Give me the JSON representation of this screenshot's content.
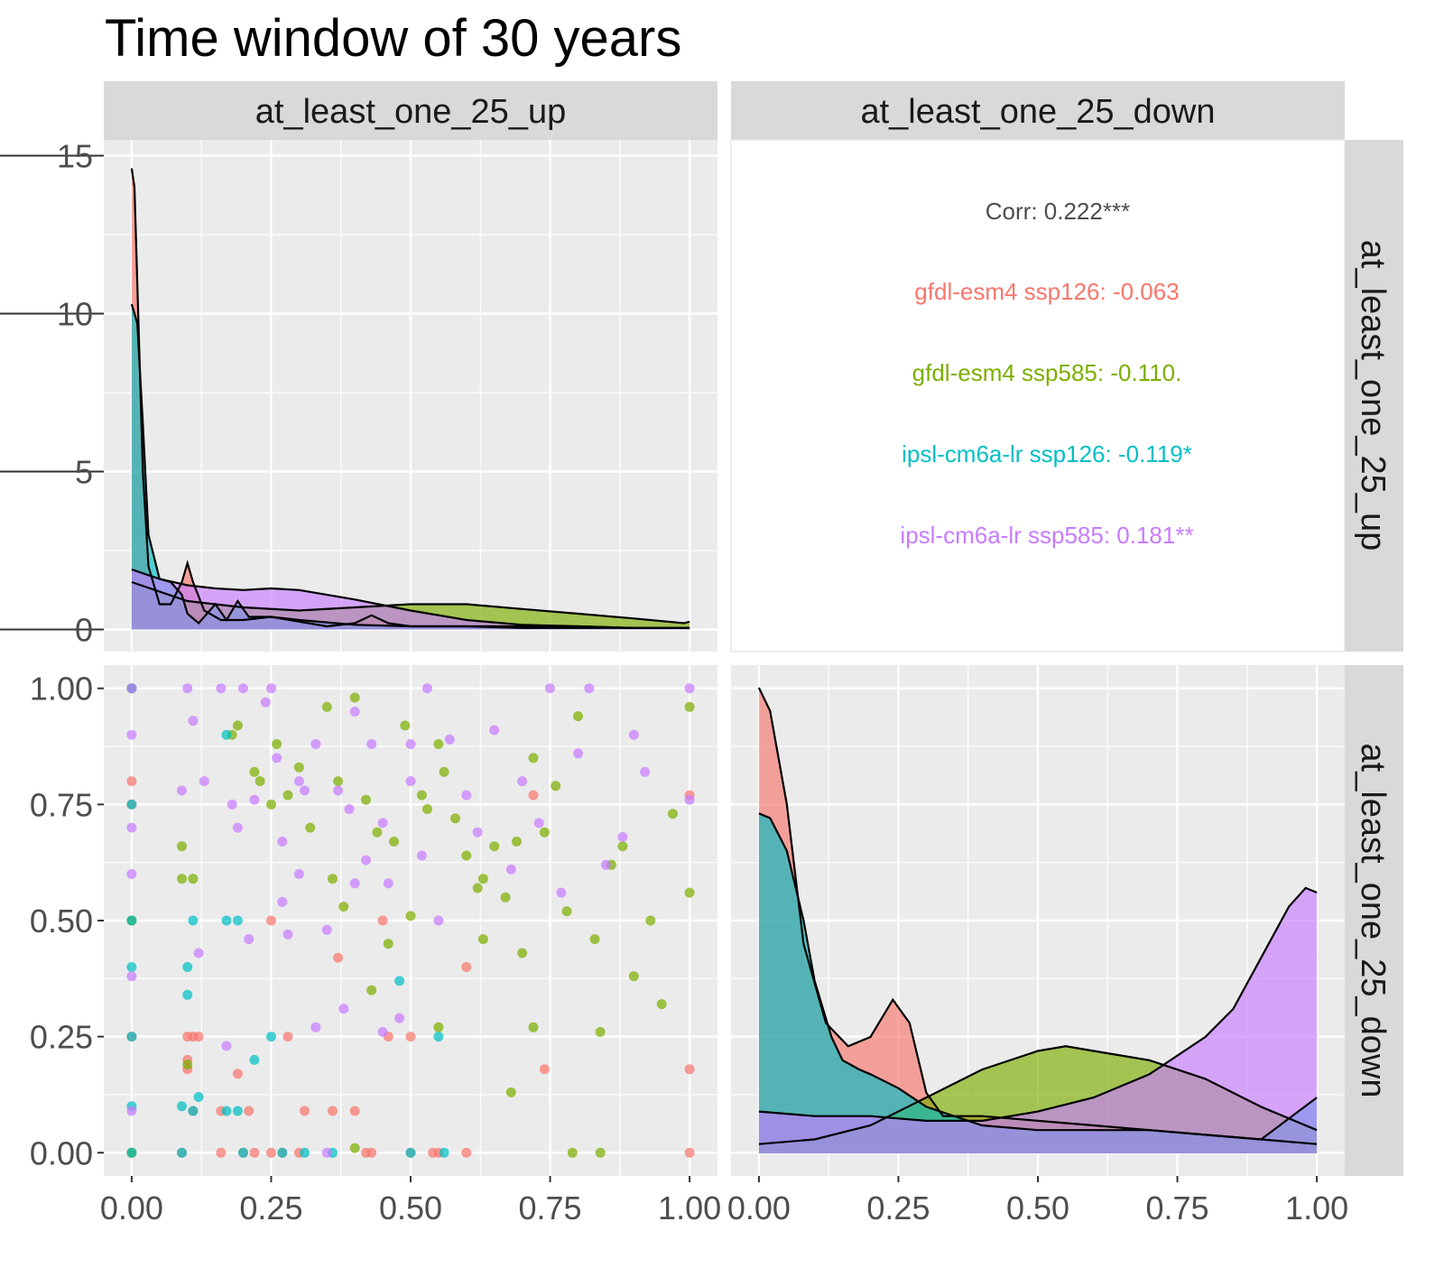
{
  "title": "Time window of 30 years",
  "colors": {
    "gfdl-esm4 ssp126": "#F8766D",
    "gfdl-esm4 ssp585": "#7CAE00",
    "ipsl-cm6a-lr ssp126": "#00BFC4",
    "ipsl-cm6a-lr ssp585": "#C77CFF"
  },
  "chart_data": {
    "type": "scatter",
    "title": "Time window of 30 years",
    "facets": {
      "columns": [
        "at_least_one_25_up",
        "at_least_one_25_down"
      ],
      "rows": [
        "at_least_one_25_up",
        "at_least_one_25_down"
      ]
    },
    "axes": {
      "x_ticks": [
        "0.00",
        "0.25",
        "0.50",
        "0.75",
        "1.00"
      ],
      "x_range": [
        -0.05,
        1.05
      ],
      "y_density_ticks": [
        "0",
        "5",
        "10",
        "15"
      ],
      "y_density_range": [
        -0.7,
        15.5
      ],
      "y_scatter_ticks": [
        "0.00",
        "0.25",
        "0.50",
        "0.75",
        "1.00"
      ],
      "y_scatter_range": [
        -0.05,
        1.05
      ],
      "grid": true
    },
    "correlations": {
      "overall": "Corr: 0.222***",
      "groups": [
        {
          "series": "gfdl-esm4 ssp126",
          "label": "gfdl-esm4 ssp126: -0.063"
        },
        {
          "series": "gfdl-esm4 ssp585",
          "label": "gfdl-esm4 ssp585: -0.110."
        },
        {
          "series": "ipsl-cm6a-lr ssp126",
          "label": "ipsl-cm6a-lr ssp126: -0.119*"
        },
        {
          "series": "ipsl-cm6a-lr ssp585",
          "label": "ipsl-cm6a-lr ssp585: 0.181**"
        }
      ]
    },
    "density_up": [
      {
        "series": "gfdl-esm4 ssp126",
        "x": [
          0,
          0.005,
          0.01,
          0.02,
          0.03,
          0.05,
          0.07,
          0.09,
          0.1,
          0.11,
          0.13,
          0.16,
          0.2,
          0.25,
          0.3,
          0.35,
          0.4,
          0.43,
          0.46,
          0.5,
          0.6,
          0.7,
          0.8,
          0.9,
          1.0
        ],
        "y": [
          14.6,
          14.0,
          11.0,
          5.0,
          2.0,
          0.8,
          0.8,
          1.5,
          2.1,
          1.5,
          0.6,
          0.3,
          0.3,
          0.4,
          0.25,
          0.1,
          0.2,
          0.45,
          0.2,
          0.1,
          0.1,
          0.1,
          0.1,
          0.05,
          0.05
        ]
      },
      {
        "series": "gfdl-esm4 ssp585",
        "x": [
          0,
          0.1,
          0.2,
          0.3,
          0.4,
          0.5,
          0.6,
          0.7,
          0.8,
          0.9,
          0.99,
          1.0
        ],
        "y": [
          1.5,
          0.9,
          0.7,
          0.6,
          0.7,
          0.8,
          0.8,
          0.65,
          0.5,
          0.35,
          0.2,
          0.25
        ]
      },
      {
        "series": "ipsl-cm6a-lr ssp126",
        "x": [
          0,
          0.01,
          0.02,
          0.03,
          0.05,
          0.07,
          0.09,
          0.1,
          0.12,
          0.15,
          0.17,
          0.19,
          0.21,
          0.25,
          0.3,
          0.4,
          0.5,
          0.6,
          0.7,
          0.8,
          0.9,
          1.0
        ],
        "y": [
          10.3,
          9.7,
          6.5,
          3.0,
          1.6,
          1.5,
          1.1,
          0.5,
          0.2,
          0.8,
          0.3,
          0.9,
          0.4,
          0.4,
          0.3,
          0.15,
          0.1,
          0.1,
          0.05,
          0.05,
          0.05,
          0.05
        ]
      },
      {
        "series": "ipsl-cm6a-lr ssp585",
        "x": [
          0,
          0.05,
          0.1,
          0.15,
          0.2,
          0.25,
          0.3,
          0.4,
          0.5,
          0.6,
          0.7,
          0.8,
          0.9,
          1.0
        ],
        "y": [
          1.9,
          1.6,
          1.4,
          1.3,
          1.25,
          1.3,
          1.25,
          0.95,
          0.6,
          0.3,
          0.15,
          0.1,
          0.05,
          0.05
        ]
      }
    ],
    "density_down": [
      {
        "series": "gfdl-esm4 ssp126",
        "x": [
          0,
          0.02,
          0.05,
          0.08,
          0.12,
          0.16,
          0.2,
          0.24,
          0.27,
          0.3,
          0.33,
          0.4,
          0.5,
          0.6,
          0.7,
          0.8,
          0.9,
          1.0
        ],
        "y": [
          1.0,
          0.95,
          0.75,
          0.45,
          0.28,
          0.23,
          0.25,
          0.33,
          0.28,
          0.13,
          0.08,
          0.08,
          0.07,
          0.06,
          0.05,
          0.04,
          0.03,
          0.02
        ]
      },
      {
        "series": "gfdl-esm4 ssp585",
        "x": [
          0,
          0.1,
          0.2,
          0.3,
          0.4,
          0.5,
          0.55,
          0.6,
          0.7,
          0.8,
          0.9,
          1.0
        ],
        "y": [
          0.02,
          0.03,
          0.06,
          0.12,
          0.18,
          0.22,
          0.23,
          0.22,
          0.2,
          0.16,
          0.1,
          0.05
        ]
      },
      {
        "series": "ipsl-cm6a-lr ssp126",
        "x": [
          0,
          0.02,
          0.05,
          0.08,
          0.1,
          0.13,
          0.15,
          0.18,
          0.2,
          0.25,
          0.3,
          0.4,
          0.5,
          0.6,
          0.7,
          0.8,
          0.9,
          1.0
        ],
        "y": [
          0.73,
          0.72,
          0.65,
          0.5,
          0.37,
          0.25,
          0.2,
          0.18,
          0.17,
          0.14,
          0.1,
          0.06,
          0.05,
          0.05,
          0.05,
          0.04,
          0.03,
          0.12
        ]
      },
      {
        "series": "ipsl-cm6a-lr ssp585",
        "x": [
          0,
          0.1,
          0.2,
          0.3,
          0.4,
          0.5,
          0.6,
          0.7,
          0.8,
          0.85,
          0.9,
          0.95,
          0.98,
          1.0
        ],
        "y": [
          0.09,
          0.08,
          0.08,
          0.07,
          0.07,
          0.09,
          0.12,
          0.17,
          0.25,
          0.31,
          0.42,
          0.53,
          0.57,
          0.56
        ]
      }
    ],
    "scatter": [
      {
        "series": "gfdl-esm4 ssp126",
        "points": [
          [
            0,
            1
          ],
          [
            0,
            0.8
          ],
          [
            0,
            0.75
          ],
          [
            0,
            0.5
          ],
          [
            0,
            0.25
          ],
          [
            0,
            0
          ],
          [
            0.09,
            0
          ],
          [
            0.1,
            0.25
          ],
          [
            0.1,
            0.2
          ],
          [
            0.1,
            0.18
          ],
          [
            0.11,
            0.09
          ],
          [
            0.11,
            0.25
          ],
          [
            0.12,
            0.25
          ],
          [
            0.16,
            0
          ],
          [
            0.16,
            0.09
          ],
          [
            0.19,
            0.17
          ],
          [
            0.2,
            0
          ],
          [
            0.21,
            0.09
          ],
          [
            0.22,
            0
          ],
          [
            0.25,
            0.5
          ],
          [
            0.25,
            0
          ],
          [
            0.27,
            0
          ],
          [
            0.28,
            0.25
          ],
          [
            0.3,
            0
          ],
          [
            0.31,
            0.09
          ],
          [
            0.36,
            0.09
          ],
          [
            0.37,
            0.42
          ],
          [
            0.4,
            0.09
          ],
          [
            0.42,
            0
          ],
          [
            0.43,
            0
          ],
          [
            0.45,
            0.5
          ],
          [
            0.46,
            0.25
          ],
          [
            0.5,
            0.25
          ],
          [
            0.5,
            0
          ],
          [
            0.54,
            0
          ],
          [
            0.55,
            0
          ],
          [
            0.6,
            0.4
          ],
          [
            0.6,
            0
          ],
          [
            0.72,
            0.77
          ],
          [
            0.74,
            0.18
          ],
          [
            1,
            0.77
          ],
          [
            1,
            0.18
          ],
          [
            1,
            0
          ]
        ]
      },
      {
        "series": "gfdl-esm4 ssp585",
        "points": [
          [
            0,
            1
          ],
          [
            0,
            0.5
          ],
          [
            0,
            0
          ],
          [
            0.09,
            0.66
          ],
          [
            0.09,
            0.59
          ],
          [
            0.1,
            0.19
          ],
          [
            0.11,
            0.59
          ],
          [
            0.18,
            0.9
          ],
          [
            0.19,
            0.92
          ],
          [
            0.22,
            0.82
          ],
          [
            0.23,
            0.8
          ],
          [
            0.25,
            0.75
          ],
          [
            0.26,
            0.88
          ],
          [
            0.28,
            0.77
          ],
          [
            0.3,
            0.83
          ],
          [
            0.32,
            0.7
          ],
          [
            0.35,
            0.96
          ],
          [
            0.36,
            0.59
          ],
          [
            0.37,
            0.8
          ],
          [
            0.38,
            0.53
          ],
          [
            0.4,
            0.98
          ],
          [
            0.42,
            0.76
          ],
          [
            0.43,
            0.35
          ],
          [
            0.44,
            0.69
          ],
          [
            0.46,
            0.45
          ],
          [
            0.47,
            0.67
          ],
          [
            0.49,
            0.92
          ],
          [
            0.5,
            0.51
          ],
          [
            0.52,
            0.77
          ],
          [
            0.53,
            0.74
          ],
          [
            0.55,
            0.88
          ],
          [
            0.56,
            0.82
          ],
          [
            0.58,
            0.72
          ],
          [
            0.6,
            0.64
          ],
          [
            0.62,
            0.57
          ],
          [
            0.63,
            0.46
          ],
          [
            0.65,
            0.66
          ],
          [
            0.67,
            0.55
          ],
          [
            0.69,
            0.67
          ],
          [
            0.7,
            0.43
          ],
          [
            0.72,
            0.85
          ],
          [
            0.74,
            0.69
          ],
          [
            0.76,
            0.79
          ],
          [
            0.78,
            0.52
          ],
          [
            0.8,
            0.94
          ],
          [
            0.83,
            0.46
          ],
          [
            0.84,
            0.26
          ],
          [
            0.86,
            0.62
          ],
          [
            0.88,
            0.66
          ],
          [
            0.9,
            0.38
          ],
          [
            0.93,
            0.5
          ],
          [
            0.95,
            0.32
          ],
          [
            0.97,
            0.73
          ],
          [
            1,
            0.96
          ],
          [
            1,
            0.56
          ],
          [
            0.55,
            0.27
          ],
          [
            0.4,
            0.01
          ],
          [
            0.63,
            0.59
          ],
          [
            0.68,
            0.13
          ],
          [
            0.72,
            0.27
          ],
          [
            0.79,
            0
          ],
          [
            0.84,
            0
          ]
        ]
      },
      {
        "series": "ipsl-cm6a-lr ssp126",
        "points": [
          [
            0,
            1
          ],
          [
            0,
            0.75
          ],
          [
            0,
            0.5
          ],
          [
            0,
            0.4
          ],
          [
            0,
            0.25
          ],
          [
            0,
            0.1
          ],
          [
            0,
            0
          ],
          [
            0.09,
            0.1
          ],
          [
            0.09,
            0
          ],
          [
            0.1,
            0.4
          ],
          [
            0.1,
            0.34
          ],
          [
            0.11,
            0.5
          ],
          [
            0.11,
            0.09
          ],
          [
            0.12,
            0.12
          ],
          [
            0.17,
            0.9
          ],
          [
            0.17,
            0.5
          ],
          [
            0.17,
            0.09
          ],
          [
            0.19,
            0.5
          ],
          [
            0.19,
            0.09
          ],
          [
            0.2,
            0
          ],
          [
            0.22,
            0.2
          ],
          [
            0.25,
            0.25
          ],
          [
            0.27,
            0
          ],
          [
            0.31,
            0
          ],
          [
            0.36,
            0
          ],
          [
            0.48,
            0.37
          ],
          [
            0.5,
            0
          ],
          [
            0.55,
            0.25
          ],
          [
            0.56,
            0
          ]
        ]
      },
      {
        "series": "ipsl-cm6a-lr ssp585",
        "points": [
          [
            0,
            1
          ],
          [
            0,
            0.9
          ],
          [
            0,
            0.7
          ],
          [
            0,
            0.6
          ],
          [
            0,
            0.38
          ],
          [
            0,
            0.09
          ],
          [
            0.09,
            0.78
          ],
          [
            0.1,
            1
          ],
          [
            0.11,
            0.93
          ],
          [
            0.12,
            0.43
          ],
          [
            0.13,
            0.8
          ],
          [
            0.16,
            1
          ],
          [
            0.17,
            0.23
          ],
          [
            0.18,
            0.75
          ],
          [
            0.19,
            0.7
          ],
          [
            0.2,
            1
          ],
          [
            0.21,
            0.46
          ],
          [
            0.22,
            0.76
          ],
          [
            0.24,
            0.97
          ],
          [
            0.25,
            1
          ],
          [
            0.26,
            0.85
          ],
          [
            0.27,
            0.67
          ],
          [
            0.28,
            0.47
          ],
          [
            0.3,
            0.6
          ],
          [
            0.31,
            0.78
          ],
          [
            0.33,
            0.88
          ],
          [
            0.35,
            0.48
          ],
          [
            0.37,
            0.78
          ],
          [
            0.38,
            0.31
          ],
          [
            0.4,
            0.95
          ],
          [
            0.42,
            0.63
          ],
          [
            0.43,
            0.88
          ],
          [
            0.45,
            0.71
          ],
          [
            0.46,
            0.58
          ],
          [
            0.48,
            0.29
          ],
          [
            0.5,
            0.8
          ],
          [
            0.52,
            0.64
          ],
          [
            0.53,
            1
          ],
          [
            0.55,
            0.5
          ],
          [
            0.57,
            0.89
          ],
          [
            0.6,
            0.77
          ],
          [
            0.62,
            0.69
          ],
          [
            0.65,
            0.91
          ],
          [
            0.68,
            0.61
          ],
          [
            0.7,
            0.8
          ],
          [
            0.73,
            0.71
          ],
          [
            0.75,
            1
          ],
          [
            0.77,
            0.56
          ],
          [
            0.8,
            0.86
          ],
          [
            0.82,
            1
          ],
          [
            0.85,
            0.62
          ],
          [
            0.88,
            0.68
          ],
          [
            0.9,
            0.9
          ],
          [
            0.92,
            0.82
          ],
          [
            1,
            1
          ],
          [
            1,
            0.76
          ],
          [
            0.27,
            0.54
          ],
          [
            0.33,
            0.27
          ],
          [
            0.4,
            0.58
          ],
          [
            0.45,
            0.26
          ],
          [
            0.5,
            0.88
          ],
          [
            0.35,
            0
          ],
          [
            0.3,
            0.8
          ],
          [
            0.39,
            0.74
          ]
        ]
      }
    ]
  }
}
